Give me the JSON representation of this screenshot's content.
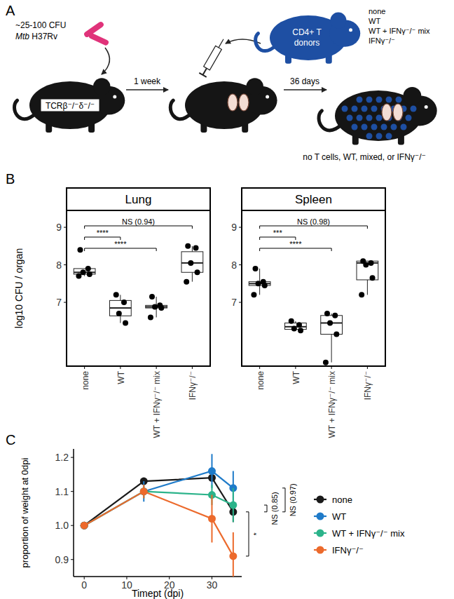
{
  "panel_labels": [
    "A",
    "B",
    "C"
  ],
  "diagram": {
    "inoculum": [
      "~25-100 CFU",
      "Mtb H37Rv"
    ],
    "recipient": "TCRβ⁻/⁻δ⁻/⁻",
    "steps": [
      "1 week",
      "36 days"
    ],
    "donor": [
      "CD4+ T",
      "donors"
    ],
    "donor_groups": [
      "none",
      "WT",
      "WT + IFNγ⁻/⁻ mix",
      "IFNγ⁻/⁻"
    ],
    "outcome": "no T cells, WT, mixed, or IFNγ⁻/⁻"
  },
  "chart_data": [
    {
      "type": "box",
      "title": "Lung",
      "ylabel": "log10 CFU / organ",
      "categories": [
        "none",
        "WT",
        "WT + IFNγ⁻/⁻ mix",
        "IFNγ⁻/⁻"
      ],
      "ylim": [
        5.3,
        9.45
      ],
      "yticks": [
        7,
        8,
        9
      ],
      "grid": false,
      "points": [
        [
          8.4,
          7.9,
          7.8,
          7.75,
          7.7
        ],
        [
          7.2,
          7.0,
          6.7,
          6.45
        ],
        [
          7.15,
          6.92,
          6.88,
          6.85,
          6.6
        ],
        [
          8.5,
          8.45,
          8.05,
          7.8,
          7.55
        ]
      ],
      "q1": [
        7.75,
        6.64,
        6.85,
        7.8
      ],
      "median": [
        7.8,
        6.85,
        6.88,
        8.05
      ],
      "q3": [
        7.9,
        7.05,
        6.92,
        8.35
      ],
      "whisker_low": [
        7.7,
        6.45,
        6.6,
        7.55
      ],
      "whisker_high": [
        7.9,
        7.2,
        7.15,
        8.5
      ],
      "comparisons": [
        {
          "pair": [
            0,
            3
          ],
          "label": "NS (0.94)"
        },
        {
          "pair": [
            0,
            1
          ],
          "label": "****"
        },
        {
          "pair": [
            0,
            2
          ],
          "label": "****"
        }
      ]
    },
    {
      "type": "box",
      "title": "Spleen",
      "categories": [
        "none",
        "WT",
        "WT + IFNγ⁻/⁻ mix",
        "IFNγ⁻/⁻"
      ],
      "ylim": [
        5.3,
        9.45
      ],
      "yticks": [
        7,
        8,
        9
      ],
      "grid": false,
      "points": [
        [
          7.9,
          7.55,
          7.5,
          7.45,
          7.2
        ],
        [
          6.5,
          6.4,
          6.3,
          6.25
        ],
        [
          6.7,
          6.65,
          6.45,
          6.15,
          5.4
        ],
        [
          8.1,
          8.05,
          8.0,
          7.65,
          7.2
        ]
      ],
      "q1": [
        7.45,
        6.28,
        6.15,
        7.6
      ],
      "median": [
        7.5,
        6.35,
        6.45,
        8.05
      ],
      "q3": [
        7.55,
        6.45,
        6.65,
        8.1
      ],
      "whisker_low": [
        7.2,
        6.25,
        5.4,
        7.2
      ],
      "whisker_high": [
        7.9,
        6.5,
        6.7,
        8.1
      ],
      "comparisons": [
        {
          "pair": [
            0,
            3
          ],
          "label": "NS (0.98)"
        },
        {
          "pair": [
            0,
            1
          ],
          "label": "***"
        },
        {
          "pair": [
            0,
            2
          ],
          "label": "****"
        }
      ]
    },
    {
      "type": "line",
      "xlabel": "Timept (dpi)",
      "ylabel": "proportion of weight at 0dpi",
      "x": [
        0,
        14,
        30,
        35
      ],
      "xlim": [
        -2.5,
        37
      ],
      "xticks": [
        0,
        10,
        20,
        30
      ],
      "ylim": [
        0.85,
        1.225
      ],
      "yticks": [
        0.9,
        {
          "value": 1,
          "label": "1.0"
        },
        1.1,
        1.2
      ],
      "grid": false,
      "legend": "right",
      "marker": "circle",
      "series": [
        {
          "name": "none",
          "color": "#1a1a1a",
          "values": [
            1,
            1.13,
            1.14,
            1.04
          ],
          "errors": [
            0,
            0.01,
            0.01,
            0.03
          ]
        },
        {
          "name": "WT",
          "color": "#1f7bc9",
          "values": [
            1,
            1.1,
            1.16,
            1.11
          ],
          "errors": [
            0,
            0.03,
            0.05,
            0.05
          ]
        },
        {
          "name": "WT + IFNγ⁻/⁻ mix",
          "color": "#2bb38a",
          "values": [
            1,
            1.1,
            1.09,
            1.06
          ],
          "errors": [
            0,
            0.02,
            0.03,
            0.05
          ]
        },
        {
          "name": "IFNγ⁻/⁻",
          "color": "#ec6a2c",
          "values": [
            1,
            1.1,
            1.02,
            0.91
          ],
          "errors": [
            0,
            0.02,
            0.07,
            0.07
          ]
        }
      ],
      "comparisons": [
        {
          "pair": [
            0,
            1
          ],
          "label": "NS (0.97)"
        },
        {
          "pair": [
            0,
            2
          ],
          "label": "NS (0.85)"
        },
        {
          "pair": [
            0,
            3
          ],
          "label": "*"
        }
      ]
    }
  ]
}
